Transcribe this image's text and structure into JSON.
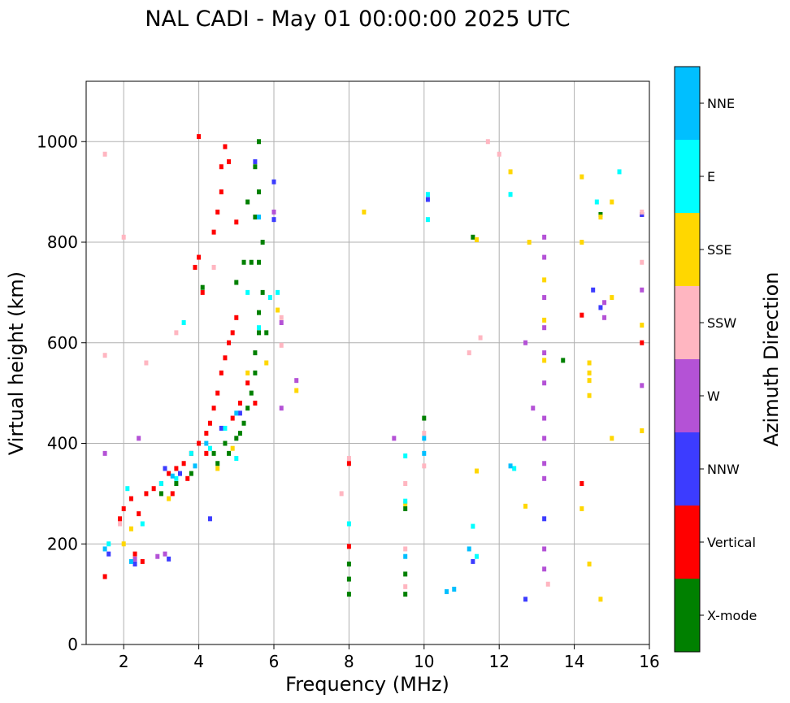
{
  "chart_data": {
    "type": "scatter",
    "title": "NAL CADI - May 01 00:00:00 2025 UTC",
    "xlabel": "Frequency (MHz)",
    "ylabel": "Virtual height (km)",
    "xlim": [
      1,
      16
    ],
    "ylim": [
      0,
      1120
    ],
    "xticks": [
      2,
      4,
      6,
      8,
      10,
      12,
      14,
      16
    ],
    "yticks": [
      0,
      200,
      400,
      600,
      800,
      1000
    ],
    "grid": true,
    "colorbar": {
      "title": "Azimuth Direction",
      "placement": "right",
      "categories": [
        {
          "name": "X-mode",
          "color": "#008000"
        },
        {
          "name": "Vertical",
          "color": "#ff0000"
        },
        {
          "name": "NNW",
          "color": "#3c3cff"
        },
        {
          "name": "W",
          "color": "#b452d6"
        },
        {
          "name": "SSW",
          "color": "#ffb6c1"
        },
        {
          "name": "SSE",
          "color": "#ffd700"
        },
        {
          "name": "E",
          "color": "#00ffff"
        },
        {
          "name": "NNE",
          "color": "#00bfff"
        }
      ]
    },
    "series": [
      {
        "name": "Vertical",
        "points": [
          [
            1.5,
            135
          ],
          [
            1.9,
            250
          ],
          [
            2.0,
            270
          ],
          [
            2.2,
            290
          ],
          [
            2.4,
            260
          ],
          [
            2.6,
            300
          ],
          [
            2.8,
            310
          ],
          [
            3.0,
            320
          ],
          [
            3.2,
            340
          ],
          [
            3.4,
            350
          ],
          [
            3.6,
            360
          ],
          [
            3.8,
            380
          ],
          [
            4.0,
            400
          ],
          [
            4.2,
            420
          ],
          [
            4.3,
            440
          ],
          [
            4.4,
            470
          ],
          [
            4.5,
            500
          ],
          [
            4.6,
            540
          ],
          [
            4.7,
            570
          ],
          [
            4.8,
            600
          ],
          [
            4.9,
            620
          ],
          [
            5.0,
            650
          ],
          [
            4.1,
            700
          ],
          [
            3.9,
            750
          ],
          [
            4.0,
            770
          ],
          [
            4.4,
            820
          ],
          [
            4.5,
            860
          ],
          [
            4.6,
            900
          ],
          [
            4.6,
            950
          ],
          [
            4.7,
            990
          ],
          [
            4.0,
            1010
          ],
          [
            4.8,
            960
          ],
          [
            5.0,
            840
          ],
          [
            5.3,
            520
          ],
          [
            5.5,
            480
          ],
          [
            2.3,
            180
          ],
          [
            2.5,
            165
          ],
          [
            3.3,
            300
          ],
          [
            3.7,
            330
          ],
          [
            4.9,
            450
          ],
          [
            5.1,
            480
          ],
          [
            8.0,
            360
          ],
          [
            8.0,
            195
          ],
          [
            14.2,
            655
          ],
          [
            14.2,
            320
          ],
          [
            15.8,
            600
          ],
          [
            15.8,
            855
          ],
          [
            4.2,
            380
          ]
        ]
      },
      {
        "name": "X-mode",
        "points": [
          [
            3.0,
            300
          ],
          [
            3.4,
            320
          ],
          [
            3.8,
            340
          ],
          [
            4.5,
            360
          ],
          [
            4.8,
            380
          ],
          [
            5.0,
            410
          ],
          [
            5.2,
            440
          ],
          [
            5.3,
            470
          ],
          [
            5.4,
            500
          ],
          [
            5.5,
            540
          ],
          [
            5.5,
            580
          ],
          [
            5.6,
            620
          ],
          [
            5.6,
            660
          ],
          [
            5.7,
            700
          ],
          [
            5.6,
            760
          ],
          [
            5.7,
            800
          ],
          [
            5.5,
            850
          ],
          [
            5.6,
            900
          ],
          [
            5.5,
            950
          ],
          [
            5.6,
            1000
          ],
          [
            5.3,
            880
          ],
          [
            5.2,
            760
          ],
          [
            5.0,
            720
          ],
          [
            5.4,
            760
          ],
          [
            4.1,
            710
          ],
          [
            4.4,
            380
          ],
          [
            4.7,
            400
          ],
          [
            5.1,
            420
          ],
          [
            8.0,
            100
          ],
          [
            8.0,
            130
          ],
          [
            8.0,
            160
          ],
          [
            9.5,
            140
          ],
          [
            9.5,
            100
          ],
          [
            9.5,
            270
          ],
          [
            10.0,
            450
          ],
          [
            11.3,
            810
          ],
          [
            13.7,
            565
          ],
          [
            14.7,
            855
          ],
          [
            5.8,
            620
          ]
        ]
      },
      {
        "name": "NNW",
        "points": [
          [
            3.2,
            170
          ],
          [
            1.6,
            180
          ],
          [
            2.3,
            160
          ],
          [
            3.1,
            350
          ],
          [
            3.5,
            340
          ],
          [
            4.6,
            430
          ],
          [
            5.1,
            460
          ],
          [
            5.5,
            960
          ],
          [
            6.0,
            920
          ],
          [
            6.0,
            845
          ],
          [
            10.1,
            885
          ],
          [
            11.3,
            165
          ],
          [
            12.7,
            90
          ],
          [
            13.2,
            250
          ],
          [
            14.7,
            670
          ],
          [
            14.5,
            705
          ],
          [
            15.8,
            855
          ],
          [
            4.3,
            250
          ]
        ]
      },
      {
        "name": "W",
        "points": [
          [
            1.5,
            380
          ],
          [
            2.3,
            170
          ],
          [
            2.9,
            175
          ],
          [
            3.1,
            180
          ],
          [
            2.4,
            410
          ],
          [
            6.0,
            860
          ],
          [
            6.2,
            640
          ],
          [
            6.2,
            470
          ],
          [
            6.6,
            525
          ],
          [
            9.2,
            410
          ],
          [
            12.7,
            600
          ],
          [
            12.9,
            470
          ],
          [
            13.2,
            190
          ],
          [
            13.2,
            150
          ],
          [
            13.2,
            330
          ],
          [
            13.2,
            360
          ],
          [
            13.2,
            410
          ],
          [
            13.2,
            450
          ],
          [
            13.2,
            520
          ],
          [
            13.2,
            580
          ],
          [
            13.2,
            630
          ],
          [
            13.2,
            690
          ],
          [
            13.2,
            770
          ],
          [
            13.2,
            810
          ],
          [
            14.8,
            680
          ],
          [
            14.8,
            650
          ],
          [
            15.8,
            705
          ],
          [
            15.8,
            515
          ]
        ]
      },
      {
        "name": "SSW",
        "points": [
          [
            1.5,
            975
          ],
          [
            1.5,
            575
          ],
          [
            2.0,
            810
          ],
          [
            1.9,
            240
          ],
          [
            2.6,
            560
          ],
          [
            3.4,
            620
          ],
          [
            4.4,
            750
          ],
          [
            6.2,
            650
          ],
          [
            6.2,
            595
          ],
          [
            7.8,
            300
          ],
          [
            8.0,
            370
          ],
          [
            9.5,
            320
          ],
          [
            9.5,
            190
          ],
          [
            9.5,
            115
          ],
          [
            10.0,
            420
          ],
          [
            10.0,
            355
          ],
          [
            11.2,
            580
          ],
          [
            11.5,
            610
          ],
          [
            11.7,
            1000
          ],
          [
            12.0,
            975
          ],
          [
            13.3,
            120
          ],
          [
            15.8,
            760
          ],
          [
            15.8,
            860
          ]
        ]
      },
      {
        "name": "SSE",
        "points": [
          [
            2.0,
            200
          ],
          [
            2.2,
            230
          ],
          [
            3.2,
            290
          ],
          [
            4.5,
            350
          ],
          [
            4.9,
            390
          ],
          [
            5.3,
            540
          ],
          [
            5.8,
            560
          ],
          [
            6.1,
            665
          ],
          [
            6.6,
            505
          ],
          [
            8.4,
            860
          ],
          [
            9.5,
            280
          ],
          [
            11.4,
            345
          ],
          [
            11.4,
            805
          ],
          [
            12.3,
            940
          ],
          [
            12.7,
            275
          ],
          [
            12.8,
            800
          ],
          [
            13.2,
            565
          ],
          [
            13.2,
            645
          ],
          [
            13.2,
            725
          ],
          [
            14.2,
            800
          ],
          [
            14.2,
            930
          ],
          [
            14.2,
            270
          ],
          [
            14.4,
            160
          ],
          [
            14.4,
            495
          ],
          [
            14.4,
            525
          ],
          [
            14.4,
            540
          ],
          [
            14.4,
            560
          ],
          [
            14.7,
            90
          ],
          [
            14.7,
            850
          ],
          [
            15.0,
            880
          ],
          [
            15.0,
            690
          ],
          [
            15.0,
            410
          ],
          [
            15.8,
            635
          ],
          [
            15.8,
            425
          ]
        ]
      },
      {
        "name": "E",
        "points": [
          [
            1.6,
            200
          ],
          [
            2.1,
            310
          ],
          [
            2.5,
            240
          ],
          [
            3.0,
            320
          ],
          [
            3.4,
            330
          ],
          [
            3.6,
            640
          ],
          [
            3.8,
            380
          ],
          [
            4.3,
            390
          ],
          [
            4.7,
            430
          ],
          [
            5.0,
            370
          ],
          [
            5.3,
            700
          ],
          [
            5.6,
            630
          ],
          [
            5.9,
            690
          ],
          [
            6.1,
            700
          ],
          [
            8.0,
            240
          ],
          [
            9.5,
            375
          ],
          [
            9.5,
            285
          ],
          [
            10.1,
            845
          ],
          [
            10.1,
            895
          ],
          [
            11.3,
            235
          ],
          [
            11.4,
            175
          ],
          [
            12.3,
            895
          ],
          [
            12.4,
            350
          ],
          [
            14.6,
            880
          ],
          [
            15.2,
            940
          ]
        ]
      },
      {
        "name": "NNE",
        "points": [
          [
            1.5,
            190
          ],
          [
            2.2,
            165
          ],
          [
            3.3,
            335
          ],
          [
            3.9,
            355
          ],
          [
            4.2,
            400
          ],
          [
            5.0,
            460
          ],
          [
            9.5,
            175
          ],
          [
            10.0,
            380
          ],
          [
            10.0,
            410
          ],
          [
            10.6,
            105
          ],
          [
            10.8,
            110
          ],
          [
            11.2,
            190
          ],
          [
            12.3,
            355
          ],
          [
            5.6,
            850
          ]
        ]
      }
    ]
  }
}
